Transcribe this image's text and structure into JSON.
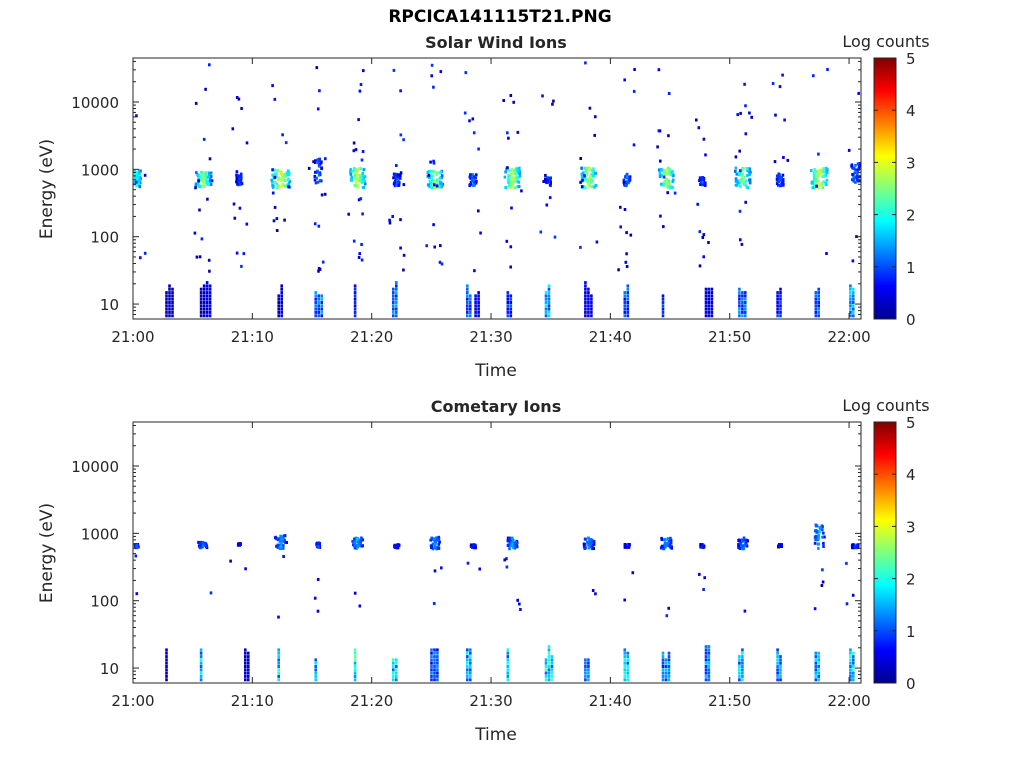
{
  "figure": {
    "title": "RPCICA141115T21.PNG"
  },
  "colorbar": {
    "label": "Log counts",
    "ticks": [
      "0",
      "1",
      "2",
      "3",
      "4",
      "5"
    ],
    "colormap": "jet",
    "range": [
      0,
      5
    ]
  },
  "chart_data": [
    {
      "type": "heatmap",
      "title": "Solar Wind Ions",
      "xlabel": "Time",
      "ylabel": "Energy (eV)",
      "xticks": [
        "21:00",
        "21:10",
        "21:20",
        "21:30",
        "21:40",
        "21:50",
        "22:00"
      ],
      "xlim_minutes": [
        0,
        61
      ],
      "yscale": "log",
      "ylim": [
        6,
        45000
      ],
      "yticks": [
        {
          "value": 10,
          "label": "10"
        },
        {
          "value": 100,
          "label": "100"
        },
        {
          "value": 1000,
          "label": "1000"
        },
        {
          "value": 10000,
          "label": "10000"
        }
      ],
      "clusters": [
        {
          "t": 0.2,
          "e": 700,
          "level": 2.2,
          "t_span": 0.7,
          "lo": 580,
          "hi": 1000
        },
        {
          "t": 5.8,
          "e": 760,
          "level": 2.6,
          "t_span": 1.3,
          "lo": 580,
          "hi": 1000
        },
        {
          "t": 8.8,
          "e": 720,
          "level": 1.0,
          "t_span": 0.5,
          "lo": 600,
          "hi": 900
        },
        {
          "t": 12.3,
          "e": 780,
          "level": 3.0,
          "t_span": 1.6,
          "lo": 560,
          "hi": 1050
        },
        {
          "t": 15.4,
          "e": 720,
          "level": 1.2,
          "t_span": 0.6,
          "lo": 600,
          "hi": 1500
        },
        {
          "t": 18.7,
          "e": 760,
          "level": 2.9,
          "t_span": 1.3,
          "lo": 560,
          "hi": 1100
        },
        {
          "t": 22.0,
          "e": 700,
          "level": 1.1,
          "t_span": 0.6,
          "lo": 600,
          "hi": 900
        },
        {
          "t": 25.2,
          "e": 760,
          "level": 2.7,
          "t_span": 1.3,
          "lo": 560,
          "hi": 1000
        },
        {
          "t": 28.4,
          "e": 700,
          "level": 1.2,
          "t_span": 0.6,
          "lo": 600,
          "hi": 900
        },
        {
          "t": 31.7,
          "e": 760,
          "level": 2.9,
          "t_span": 1.3,
          "lo": 560,
          "hi": 1100
        },
        {
          "t": 34.7,
          "e": 700,
          "level": 1.0,
          "t_span": 0.4,
          "lo": 600,
          "hi": 800
        },
        {
          "t": 38.1,
          "e": 760,
          "level": 2.8,
          "t_span": 1.3,
          "lo": 560,
          "hi": 1100
        },
        {
          "t": 41.3,
          "e": 700,
          "level": 1.2,
          "t_span": 0.6,
          "lo": 600,
          "hi": 900
        },
        {
          "t": 44.6,
          "e": 760,
          "level": 2.8,
          "t_span": 1.3,
          "lo": 560,
          "hi": 1100
        },
        {
          "t": 47.6,
          "e": 700,
          "level": 1.0,
          "t_span": 0.5,
          "lo": 600,
          "hi": 800
        },
        {
          "t": 51.0,
          "e": 760,
          "level": 2.6,
          "t_span": 1.3,
          "lo": 560,
          "hi": 1100
        },
        {
          "t": 54.1,
          "e": 700,
          "level": 1.1,
          "t_span": 0.6,
          "lo": 600,
          "hi": 900
        },
        {
          "t": 57.4,
          "e": 760,
          "level": 3.0,
          "t_span": 1.4,
          "lo": 560,
          "hi": 1100
        },
        {
          "t": 60.4,
          "e": 700,
          "level": 1.2,
          "t_span": 0.8,
          "lo": 600,
          "hi": 1300
        }
      ],
      "low_energy_bursts": [
        {
          "t": 2.7,
          "level": 0.4
        },
        {
          "t": 5.6,
          "level": 0.3
        },
        {
          "t": 6.1,
          "level": 0.6
        },
        {
          "t": 12.1,
          "level": 0.5
        },
        {
          "t": 15.2,
          "level": 1.4
        },
        {
          "t": 18.5,
          "level": 0.8
        },
        {
          "t": 21.7,
          "level": 1.5
        },
        {
          "t": 27.9,
          "level": 1.3
        },
        {
          "t": 28.6,
          "level": 0.7
        },
        {
          "t": 31.3,
          "level": 1.0
        },
        {
          "t": 34.5,
          "level": 1.7
        },
        {
          "t": 37.8,
          "level": 0.6
        },
        {
          "t": 41.1,
          "level": 1.2
        },
        {
          "t": 44.3,
          "level": 1.0
        },
        {
          "t": 47.9,
          "level": 0.6
        },
        {
          "t": 50.7,
          "level": 1.3
        },
        {
          "t": 53.9,
          "level": 1.0
        },
        {
          "t": 57.1,
          "level": 1.3
        },
        {
          "t": 60.0,
          "level": 1.6
        }
      ]
    },
    {
      "type": "heatmap",
      "title": "Cometary Ions",
      "xlabel": "Time",
      "ylabel": "Energy (eV)",
      "xticks": [
        "21:00",
        "21:10",
        "21:20",
        "21:30",
        "21:40",
        "21:50",
        "22:00"
      ],
      "xlim_minutes": [
        0,
        61
      ],
      "yscale": "log",
      "ylim": [
        6,
        45000
      ],
      "yticks": [
        {
          "value": 10,
          "label": "10"
        },
        {
          "value": 100,
          "label": "100"
        },
        {
          "value": 1000,
          "label": "1000"
        },
        {
          "value": 10000,
          "label": "10000"
        }
      ],
      "clusters": [
        {
          "t": 0.2,
          "e": 680,
          "level": 1.0,
          "t_span": 0.3,
          "lo": 640,
          "hi": 720
        },
        {
          "t": 5.8,
          "e": 700,
          "level": 1.2,
          "t_span": 0.9,
          "lo": 640,
          "hi": 780
        },
        {
          "t": 8.8,
          "e": 720,
          "level": 0.8,
          "t_span": 0.2,
          "lo": 700,
          "hi": 740
        },
        {
          "t": 12.3,
          "e": 760,
          "level": 1.3,
          "t_span": 1.0,
          "lo": 620,
          "hi": 980
        },
        {
          "t": 15.4,
          "e": 700,
          "level": 1.2,
          "t_span": 0.3,
          "lo": 650,
          "hi": 760
        },
        {
          "t": 18.7,
          "e": 730,
          "level": 1.5,
          "t_span": 0.9,
          "lo": 620,
          "hi": 900
        },
        {
          "t": 22.0,
          "e": 680,
          "level": 0.9,
          "t_span": 0.4,
          "lo": 640,
          "hi": 720
        },
        {
          "t": 25.2,
          "e": 760,
          "level": 1.4,
          "t_span": 0.8,
          "lo": 620,
          "hi": 920
        },
        {
          "t": 28.4,
          "e": 680,
          "level": 1.0,
          "t_span": 0.4,
          "lo": 640,
          "hi": 720
        },
        {
          "t": 31.7,
          "e": 760,
          "level": 1.5,
          "t_span": 0.8,
          "lo": 620,
          "hi": 900
        },
        {
          "t": 38.1,
          "e": 720,
          "level": 1.3,
          "t_span": 0.9,
          "lo": 620,
          "hi": 900
        },
        {
          "t": 41.3,
          "e": 680,
          "level": 0.9,
          "t_span": 0.4,
          "lo": 650,
          "hi": 720
        },
        {
          "t": 44.6,
          "e": 740,
          "level": 1.4,
          "t_span": 0.9,
          "lo": 620,
          "hi": 900
        },
        {
          "t": 47.6,
          "e": 680,
          "level": 0.9,
          "t_span": 0.3,
          "lo": 650,
          "hi": 720
        },
        {
          "t": 51.0,
          "e": 720,
          "level": 1.3,
          "t_span": 0.8,
          "lo": 620,
          "hi": 900
        },
        {
          "t": 54.1,
          "e": 680,
          "level": 0.9,
          "t_span": 0.3,
          "lo": 650,
          "hi": 720
        },
        {
          "t": 57.4,
          "e": 740,
          "level": 1.5,
          "t_span": 0.9,
          "lo": 620,
          "hi": 1500
        },
        {
          "t": 60.4,
          "e": 680,
          "level": 1.0,
          "t_span": 0.5,
          "lo": 640,
          "hi": 720
        }
      ],
      "low_energy_bursts": [
        {
          "t": 2.7,
          "level": 0.4
        },
        {
          "t": 5.6,
          "level": 1.8
        },
        {
          "t": 9.3,
          "level": 0.4
        },
        {
          "t": 12.1,
          "level": 2.0
        },
        {
          "t": 15.2,
          "level": 1.8
        },
        {
          "t": 18.5,
          "level": 2.2
        },
        {
          "t": 21.7,
          "level": 2.0
        },
        {
          "t": 24.9,
          "level": 1.2
        },
        {
          "t": 27.9,
          "level": 1.9
        },
        {
          "t": 31.3,
          "level": 1.9
        },
        {
          "t": 34.5,
          "level": 2.2
        },
        {
          "t": 37.8,
          "level": 1.4
        },
        {
          "t": 41.1,
          "level": 2.0
        },
        {
          "t": 44.3,
          "level": 1.5
        },
        {
          "t": 47.9,
          "level": 1.6
        },
        {
          "t": 50.7,
          "level": 1.8
        },
        {
          "t": 53.9,
          "level": 1.6
        },
        {
          "t": 57.1,
          "level": 1.9
        },
        {
          "t": 60.0,
          "level": 2.0
        }
      ]
    }
  ]
}
